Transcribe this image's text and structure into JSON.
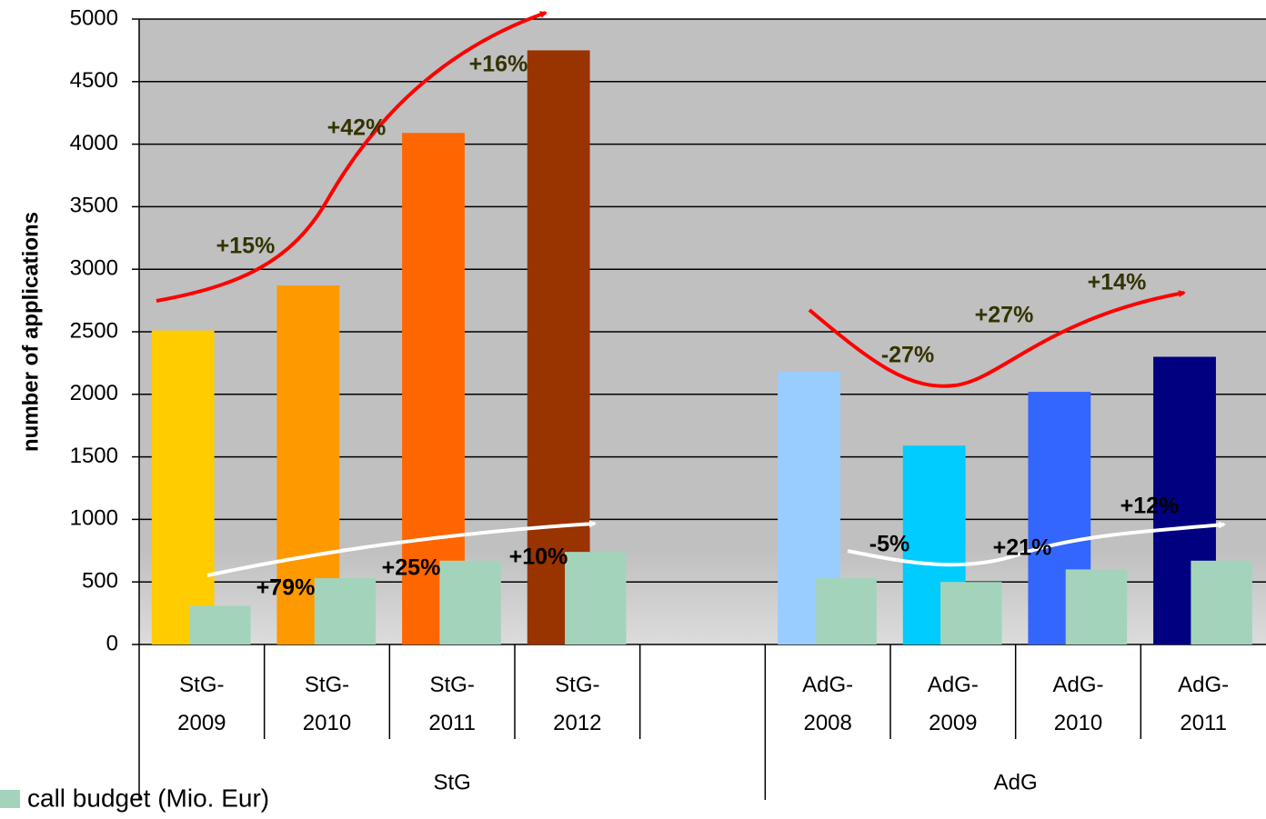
{
  "chart_data": {
    "type": "bar",
    "y_label": "number of applications",
    "categories": [
      "StG-2009",
      "StG-2010",
      "StG-2011",
      "StG-2012",
      null,
      "AdG-2008",
      "AdG-2009",
      "AdG-2010",
      "AdG-2011"
    ],
    "groups": [
      "StG",
      "AdG"
    ],
    "series": [
      {
        "colors": [
          "#ffcc00",
          "#ff9900",
          "#ff6600",
          "#993300",
          null,
          "#99ccff",
          "#00ccff",
          "#3366ff",
          "#000080"
        ],
        "values": [
          2510,
          2870,
          4090,
          4750,
          null,
          2180,
          1590,
          2020,
          2300
        ]
      },
      {
        "name": "call budget (Mio. Eur)",
        "color": "#a3d4bb",
        "values": [
          310,
          530,
          670,
          740,
          null,
          530,
          500,
          600,
          670
        ]
      }
    ],
    "annotations": [
      "+15%",
      "+42%",
      "+16%",
      "+79%",
      "+25%",
      "+10%",
      "-27%",
      "+27%",
      "+14%",
      "-5%",
      "+21%",
      "+12%"
    ],
    "ylim": [
      0,
      5000
    ],
    "yticks": [
      0,
      500,
      1000,
      1500,
      2000,
      2500,
      3000,
      3500,
      4000,
      4500,
      5000
    ],
    "grid": true
  }
}
